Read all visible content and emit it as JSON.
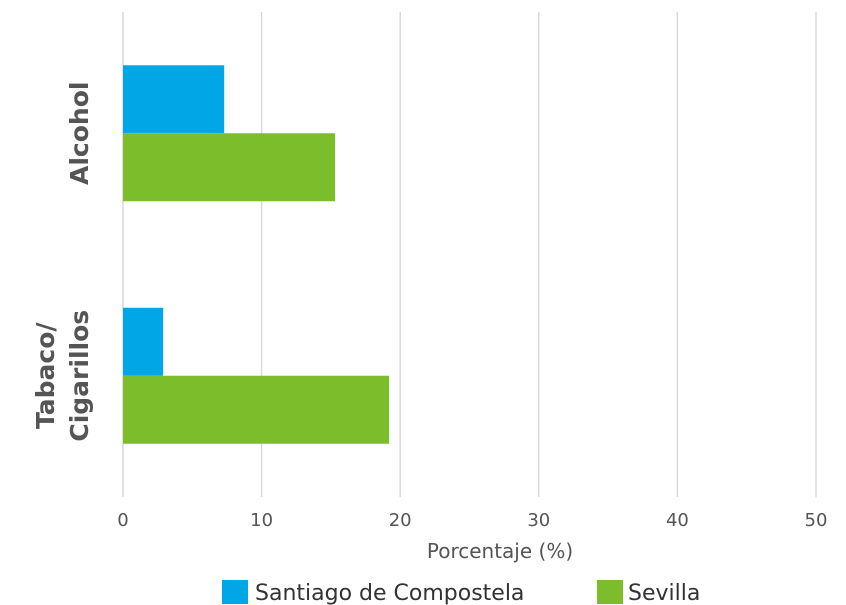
{
  "chart_data": {
    "type": "bar",
    "orientation": "horizontal",
    "categories": [
      [
        "Alcohol"
      ],
      [
        "Tabaco/",
        "Cigarillos"
      ]
    ],
    "series": [
      {
        "name": "Santiago de Compostela",
        "values": [
          7.3,
          2.9
        ],
        "color": "#00a6e6"
      },
      {
        "name": "Sevilla",
        "values": [
          15.3,
          19.2
        ],
        "color": "#7bbd2a"
      }
    ],
    "xlabel": "Porcentaje (%)",
    "xlim": [
      0,
      50
    ],
    "xticks": [
      0,
      10,
      20,
      30,
      40,
      50
    ],
    "grid": true,
    "legend_position": "bottom"
  }
}
